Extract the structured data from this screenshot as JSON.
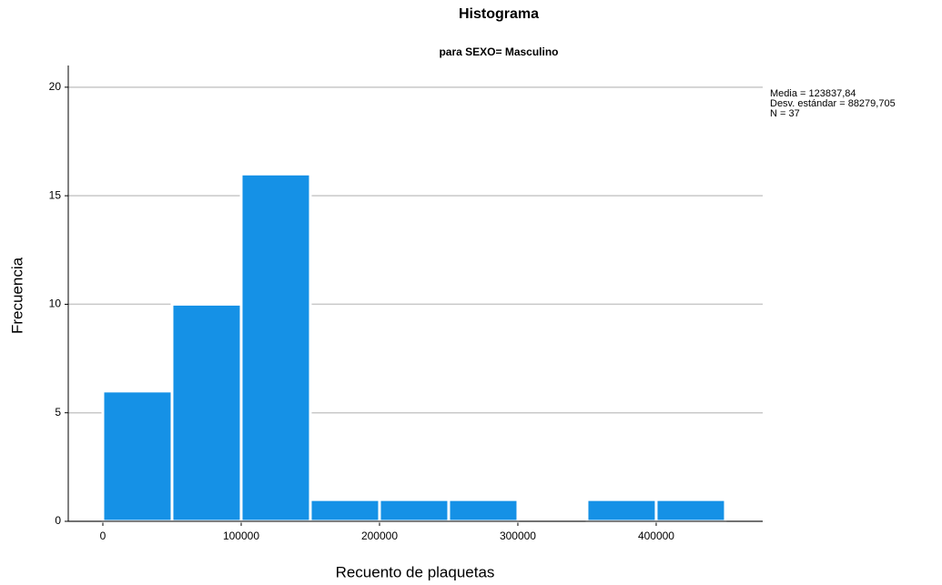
{
  "chart_data": {
    "type": "histogram",
    "title": "Histograma",
    "subtitle": "para SEXO= Masculino",
    "x_label": "Recuento de plaquetas",
    "y_label": "Frecuencia",
    "annotations": [
      "Media = 123837,84",
      "Desv. estándar = 88279,705",
      "N = 37"
    ],
    "bins": [
      0,
      50000,
      100000,
      150000,
      200000,
      250000,
      300000,
      350000,
      400000,
      450000
    ],
    "values": [
      6,
      10,
      16,
      1,
      1,
      1,
      0,
      1,
      1
    ],
    "color": "#1591e6",
    "xlim": [
      -25000,
      477000
    ],
    "xticks": [
      0,
      100000,
      200000,
      300000,
      400000
    ],
    "ylim": [
      0,
      21
    ],
    "yticks": [
      0,
      5,
      10,
      15,
      20
    ],
    "grid": true
  }
}
